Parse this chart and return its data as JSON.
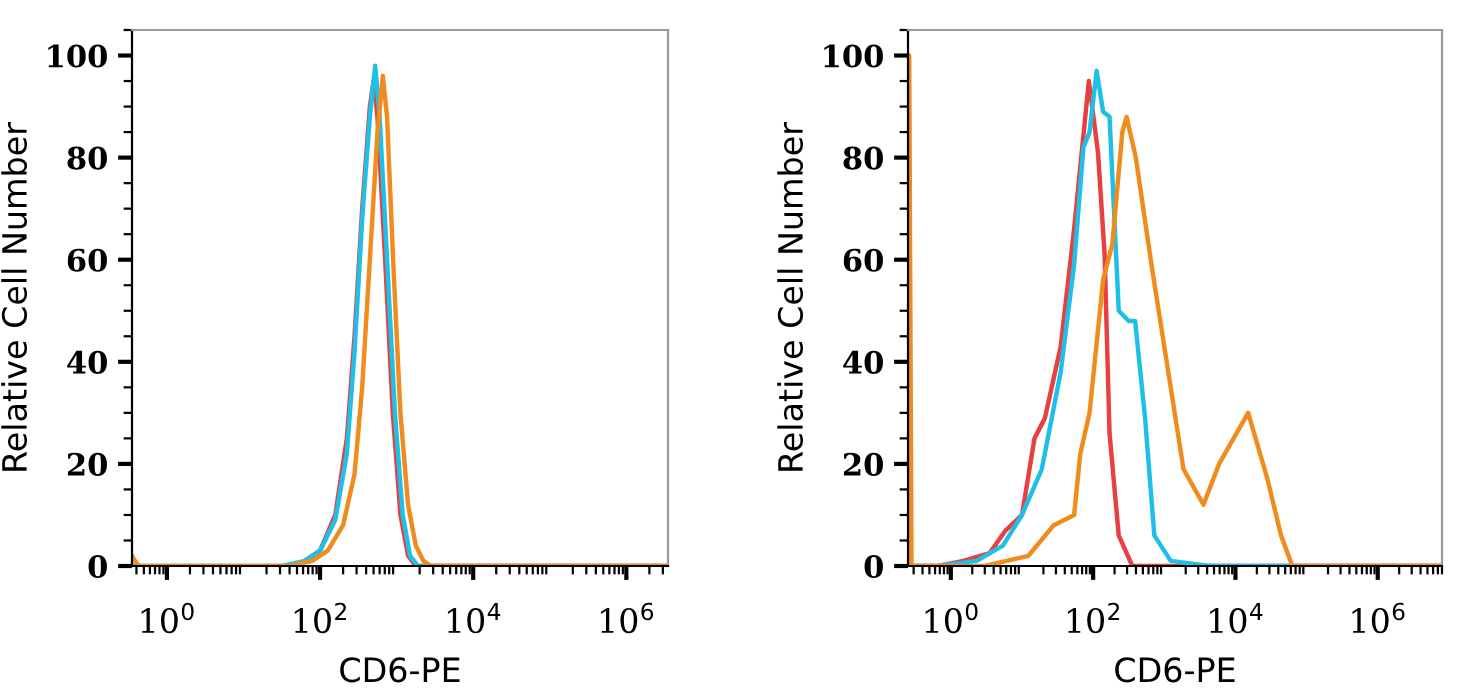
{
  "chart_data": [
    {
      "type": "line",
      "xlabel": "CD6-PE",
      "ylabel": "Relative Cell Number",
      "log": "x",
      "xlim": [
        0.35,
        3500000
      ],
      "ylim": [
        0,
        105
      ],
      "xticks": [
        {
          "value": 1,
          "label": "10$^{0}$"
        },
        {
          "value": 100,
          "label": "10$^{2}$"
        },
        {
          "value": 10000,
          "label": "10$^{4}$"
        },
        {
          "value": 1000000,
          "label": "10$^{6}$"
        }
      ],
      "yticks": [
        0,
        20,
        40,
        60,
        80,
        100
      ],
      "series": [
        {
          "color": "#e8403f",
          "x": [
            63,
            100,
            158,
            224,
            282,
            355,
            447,
            501,
            562,
            708,
            891,
            1122,
            1413,
            1778,
            3500000
          ],
          "values": [
            1,
            3,
            10,
            25,
            45,
            70,
            90,
            95,
            88,
            60,
            30,
            10,
            2,
            0,
            0
          ]
        },
        {
          "color": "#1ec0e8",
          "x": [
            0.35,
            1,
            32,
            63,
            100,
            158,
            224,
            282,
            355,
            447,
            525,
            600,
            750,
            950,
            1200,
            1500,
            1900,
            3500000
          ],
          "values": [
            0,
            0,
            0,
            1,
            3,
            9,
            22,
            42,
            68,
            88,
            98,
            88,
            60,
            30,
            10,
            2,
            0,
            0
          ]
        },
        {
          "color": "#f08c1e",
          "x": [
            0.35,
            0.42,
            1,
            40,
            79,
            126,
            200,
            282,
            355,
            447,
            562,
            660,
            750,
            900,
            1120,
            1410,
            1780,
            2240,
            2820,
            3500000
          ],
          "values": [
            2,
            0,
            0,
            0,
            1,
            3,
            8,
            18,
            35,
            60,
            85,
            96,
            88,
            60,
            30,
            12,
            4,
            1,
            0,
            0
          ]
        }
      ]
    },
    {
      "type": "line",
      "xlabel": "CD6-PE",
      "ylabel": "Relative Cell Number",
      "log": "x",
      "xlim": [
        0.25,
        8000000
      ],
      "ylim": [
        0,
        105
      ],
      "xticks": [
        {
          "value": 1,
          "label": "10$^{0}$"
        },
        {
          "value": 100,
          "label": "10$^{2}$"
        },
        {
          "value": 10000,
          "label": "10$^{4}$"
        },
        {
          "value": 1000000,
          "label": "10$^{6}$"
        }
      ],
      "yticks": [
        0,
        20,
        40,
        60,
        80,
        100
      ],
      "series": [
        {
          "color": "#e8403f",
          "x": [
            0.25,
            0.66,
            1.5,
            3.5,
            5.9,
            10,
            15,
            21,
            35,
            54,
            87,
            117,
            145,
            170,
            229,
            355,
            8000000
          ],
          "values": [
            0,
            0,
            1,
            2.5,
            7,
            10,
            25,
            29,
            43,
            66,
            95,
            81,
            61,
            26,
            6,
            0,
            0
          ]
        },
        {
          "color": "#1ec0e8",
          "x": [
            0.25,
            0.66,
            2.3,
            5.4,
            10,
            19,
            35,
            54,
            73,
            89,
            112,
            138,
            170,
            229,
            316,
            389,
            537,
            724,
            1230,
            4370,
            8000000
          ],
          "values": [
            0,
            0,
            1,
            4,
            10,
            19,
            38,
            59,
            82,
            85,
            97,
            89,
            88,
            50,
            48,
            48,
            29,
            6,
            1,
            0,
            0
          ]
        },
        {
          "color": "#f08c1e",
          "x": [
            0.25,
            0.26,
            0.28,
            3,
            12.3,
            28,
            54,
            66,
            89,
            138,
            186,
            257,
            295,
            398,
            661,
            1000,
            1860,
            3550,
            5890,
            15100,
            28200,
            43700,
            63100,
            8000000
          ],
          "values": [
            0,
            100,
            0,
            0,
            2,
            8,
            10,
            22,
            30,
            56,
            63,
            85,
            88,
            80,
            59,
            43,
            19,
            12,
            20,
            30,
            17,
            6,
            0,
            0
          ]
        }
      ]
    }
  ]
}
